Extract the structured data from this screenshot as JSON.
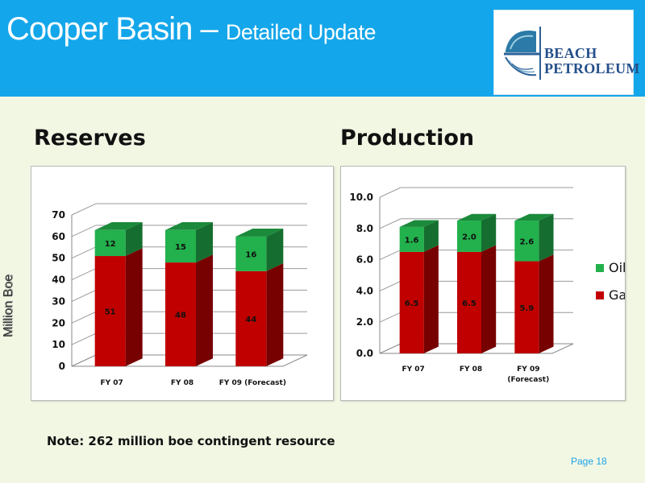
{
  "slide": {
    "title_main": "Cooper Basin – ",
    "title_sub": "Detailed Update",
    "logo_text_line1": "BEACH",
    "logo_text_line2": "PETROLEUM",
    "note": "Note: 262 million boe contingent resource",
    "page_label": "Page 18"
  },
  "colors": {
    "header": "#14a6ea",
    "gas": "#c00000",
    "oil": "#22b14c",
    "background": "#f2f7e4"
  },
  "chart_data": [
    {
      "type": "bar",
      "stacked": true,
      "title": "Reserves",
      "ylabel": "Million Boe",
      "categories": [
        "FY 07",
        "FY 08",
        "FY 09 (Forecast)"
      ],
      "series": [
        {
          "name": "Gas",
          "values": [
            51,
            48,
            44
          ]
        },
        {
          "name": "Oil",
          "values": [
            12,
            15,
            16
          ]
        }
      ],
      "ylim": [
        0,
        70
      ],
      "ticks": [
        "0",
        "10",
        "20",
        "30",
        "40",
        "50",
        "60",
        "70"
      ],
      "legend": "none"
    },
    {
      "type": "bar",
      "stacked": true,
      "title": "Production",
      "categories": [
        "FY 07",
        "FY 08",
        "FY 09 (Forecast)"
      ],
      "category_labels_display": [
        [
          "FY 07"
        ],
        [
          "FY 08"
        ],
        [
          "FY 09",
          "(Forecast)"
        ]
      ],
      "series": [
        {
          "name": "Gas",
          "values": [
            6.5,
            6.5,
            5.9
          ],
          "labels": [
            "6.5",
            "6.5",
            "5.9"
          ]
        },
        {
          "name": "Oil",
          "values": [
            1.6,
            2.0,
            2.6
          ],
          "labels": [
            "1.6",
            "2.0",
            "2.6"
          ]
        }
      ],
      "ylim": [
        0,
        10
      ],
      "ticks": [
        "0.0",
        "2.0",
        "4.0",
        "6.0",
        "8.0",
        "10.0"
      ],
      "legend": "right",
      "legend_items": [
        "Oil",
        "Gas"
      ]
    }
  ]
}
